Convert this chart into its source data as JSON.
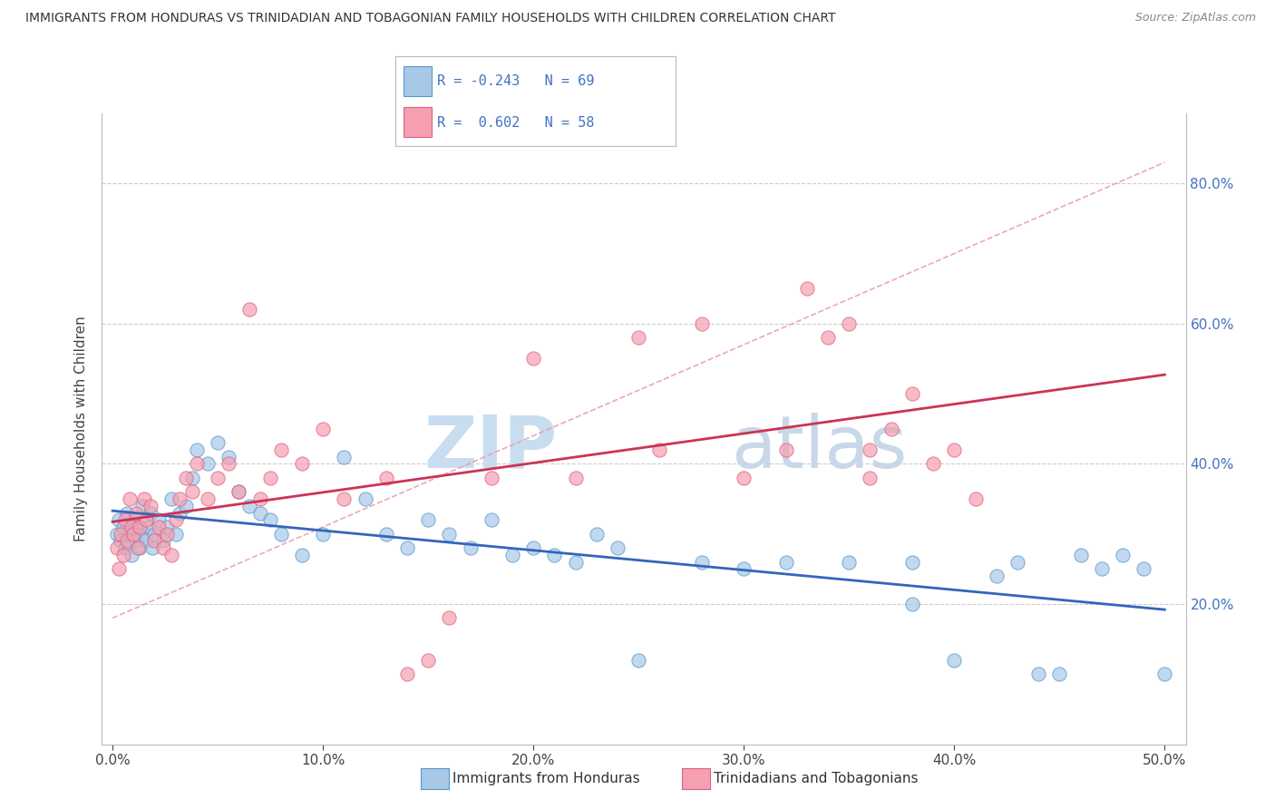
{
  "title": "IMMIGRANTS FROM HONDURAS VS TRINIDADIAN AND TOBAGONIAN FAMILY HOUSEHOLDS WITH CHILDREN CORRELATION CHART",
  "source": "Source: ZipAtlas.com",
  "ylabel_label": "Family Households with Children",
  "legend_labels": [
    "Immigrants from Honduras",
    "Trinidadians and Tobagonians"
  ],
  "R_blue": -0.243,
  "N_blue": 69,
  "R_pink": 0.602,
  "N_pink": 58,
  "blue_fill": "#a8c8e8",
  "blue_edge": "#5599cc",
  "pink_fill": "#f4a0b0",
  "pink_edge": "#e06080",
  "blue_line_color": "#3366bb",
  "pink_line_color": "#cc3355",
  "dash_line_color": "#e8a0b0",
  "watermark_zip": "#c8ddf0",
  "watermark_atlas": "#c8d8e8",
  "xlim": [
    0,
    50
  ],
  "ylim": [
    0,
    90
  ],
  "x_ticks": [
    0,
    10,
    20,
    30,
    40,
    50
  ],
  "y_ticks": [
    20,
    40,
    60,
    80
  ],
  "blue_x": [
    0.2,
    0.3,
    0.4,
    0.5,
    0.6,
    0.7,
    0.8,
    0.9,
    1.0,
    1.1,
    1.2,
    1.3,
    1.4,
    1.5,
    1.6,
    1.7,
    1.8,
    1.9,
    2.0,
    2.2,
    2.4,
    2.6,
    2.8,
    3.0,
    3.2,
    3.5,
    3.8,
    4.0,
    4.5,
    5.0,
    5.5,
    6.0,
    6.5,
    7.0,
    7.5,
    8.0,
    9.0,
    10.0,
    11.0,
    12.0,
    13.0,
    14.0,
    15.0,
    16.0,
    17.0,
    18.0,
    19.0,
    20.0,
    21.0,
    22.0,
    23.0,
    24.0,
    25.0,
    28.0,
    30.0,
    32.0,
    35.0,
    38.0,
    40.0,
    42.0,
    43.0,
    44.0,
    45.0,
    46.0,
    47.0,
    48.0,
    49.0,
    50.0,
    38.0
  ],
  "blue_y": [
    30.0,
    32.0,
    29.0,
    31.0,
    28.0,
    33.0,
    30.0,
    27.0,
    32.0,
    29.0,
    31.0,
    28.0,
    34.0,
    30.0,
    29.0,
    31.0,
    33.0,
    28.0,
    30.0,
    32.0,
    29.0,
    31.0,
    35.0,
    30.0,
    33.0,
    34.0,
    38.0,
    42.0,
    40.0,
    43.0,
    41.0,
    36.0,
    34.0,
    33.0,
    32.0,
    30.0,
    27.0,
    30.0,
    41.0,
    35.0,
    30.0,
    28.0,
    32.0,
    30.0,
    28.0,
    32.0,
    27.0,
    28.0,
    27.0,
    26.0,
    30.0,
    28.0,
    12.0,
    26.0,
    25.0,
    26.0,
    26.0,
    20.0,
    12.0,
    24.0,
    26.0,
    10.0,
    10.0,
    27.0,
    25.0,
    27.0,
    25.0,
    10.0,
    26.0
  ],
  "pink_x": [
    0.2,
    0.3,
    0.4,
    0.5,
    0.6,
    0.7,
    0.8,
    0.9,
    1.0,
    1.1,
    1.2,
    1.3,
    1.5,
    1.6,
    1.8,
    2.0,
    2.2,
    2.4,
    2.6,
    2.8,
    3.0,
    3.2,
    3.5,
    3.8,
    4.0,
    4.5,
    5.0,
    5.5,
    6.0,
    6.5,
    7.0,
    7.5,
    8.0,
    9.0,
    10.0,
    11.0,
    13.0,
    14.0,
    15.0,
    16.0,
    18.0,
    20.0,
    22.0,
    25.0,
    26.0,
    28.0,
    30.0,
    32.0,
    33.0,
    34.0,
    35.0,
    36.0,
    36.0,
    37.0,
    38.0,
    39.0,
    40.0,
    41.0
  ],
  "pink_y": [
    28.0,
    25.0,
    30.0,
    27.0,
    32.0,
    29.0,
    35.0,
    31.0,
    30.0,
    33.0,
    28.0,
    31.0,
    35.0,
    32.0,
    34.0,
    29.0,
    31.0,
    28.0,
    30.0,
    27.0,
    32.0,
    35.0,
    38.0,
    36.0,
    40.0,
    35.0,
    38.0,
    40.0,
    36.0,
    62.0,
    35.0,
    38.0,
    42.0,
    40.0,
    45.0,
    35.0,
    38.0,
    10.0,
    12.0,
    18.0,
    38.0,
    55.0,
    38.0,
    58.0,
    42.0,
    60.0,
    38.0,
    42.0,
    65.0,
    58.0,
    60.0,
    38.0,
    42.0,
    45.0,
    50.0,
    40.0,
    42.0,
    35.0
  ]
}
